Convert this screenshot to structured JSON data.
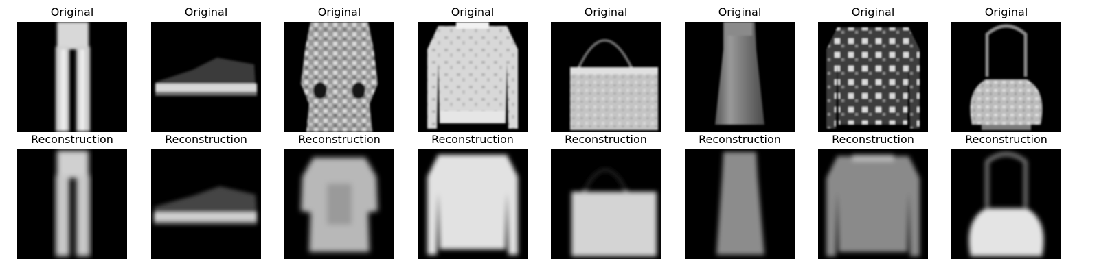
{
  "figure": {
    "background": "#ffffff",
    "image_background": "#000000",
    "row_titles": [
      "Original",
      "Reconstruction"
    ]
  },
  "panels": [
    {
      "original": {
        "title": "Original",
        "item": "trouser-icon"
      },
      "reconstruction": {
        "title": "Reconstruction",
        "item": "trouser-icon"
      }
    },
    {
      "original": {
        "title": "Original",
        "item": "sneaker-icon"
      },
      "reconstruction": {
        "title": "Reconstruction",
        "item": "sneaker-icon"
      }
    },
    {
      "original": {
        "title": "Original",
        "item": "patterned-top-icon"
      },
      "reconstruction": {
        "title": "Reconstruction",
        "item": "shirt-icon"
      }
    },
    {
      "original": {
        "title": "Original",
        "item": "pullover-icon"
      },
      "reconstruction": {
        "title": "Reconstruction",
        "item": "pullover-icon"
      }
    },
    {
      "original": {
        "title": "Original",
        "item": "handbag-icon"
      },
      "reconstruction": {
        "title": "Reconstruction",
        "item": "handbag-icon"
      }
    },
    {
      "original": {
        "title": "Original",
        "item": "dress-icon"
      },
      "reconstruction": {
        "title": "Reconstruction",
        "item": "dress-icon"
      }
    },
    {
      "original": {
        "title": "Original",
        "item": "patterned-pullover-icon"
      },
      "reconstruction": {
        "title": "Reconstruction",
        "item": "pullover-icon"
      }
    },
    {
      "original": {
        "title": "Original",
        "item": "round-bag-icon"
      },
      "reconstruction": {
        "title": "Reconstruction",
        "item": "round-bag-icon"
      }
    }
  ]
}
